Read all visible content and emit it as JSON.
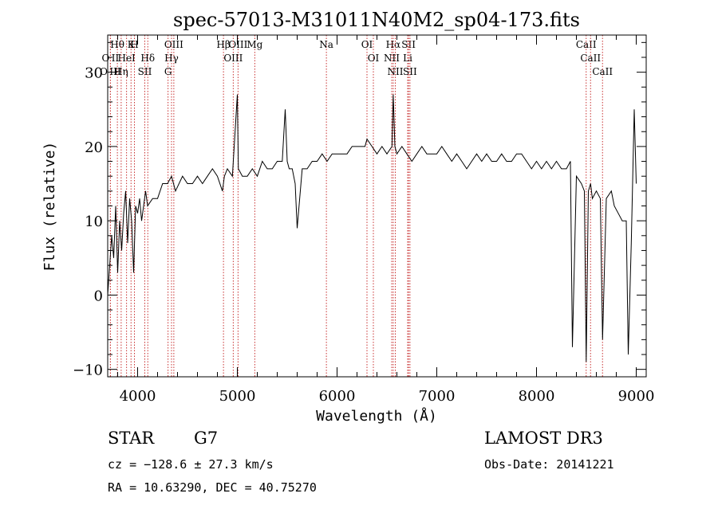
{
  "chart_data": {
    "type": "line",
    "title": "spec-57013-M31011N40M2_sp04-173.fits",
    "xlabel": "Wavelength (Å)",
    "ylabel": "Flux (relative)",
    "xlim": [
      3700,
      9100
    ],
    "ylim": [
      -11,
      35
    ],
    "xticks": [
      4000,
      5000,
      6000,
      7000,
      8000,
      9000
    ],
    "xtick_labels": [
      "4000",
      "5000",
      "6000",
      "7000",
      "8000",
      "9000"
    ],
    "yticks": [
      -10,
      0,
      10,
      20,
      30
    ],
    "ytick_labels": [
      "−10",
      "0",
      "10",
      "20",
      "30"
    ],
    "series": [
      {
        "name": "flux",
        "x": [
          3700,
          3720,
          3740,
          3760,
          3780,
          3800,
          3820,
          3840,
          3860,
          3880,
          3900,
          3920,
          3940,
          3960,
          3980,
          4000,
          4020,
          4040,
          4060,
          4080,
          4100,
          4150,
          4200,
          4250,
          4300,
          4340,
          4380,
          4450,
          4500,
          4550,
          4600,
          4650,
          4700,
          4750,
          4800,
          4850,
          4870,
          4900,
          4950,
          5000,
          5010,
          5050,
          5100,
          5150,
          5200,
          5250,
          5300,
          5350,
          5400,
          5450,
          5480,
          5500,
          5520,
          5550,
          5580,
          5600,
          5650,
          5700,
          5750,
          5800,
          5850,
          5900,
          5950,
          6000,
          6050,
          6100,
          6150,
          6200,
          6250,
          6280,
          6300,
          6350,
          6400,
          6450,
          6500,
          6550,
          6563,
          6580,
          6600,
          6650,
          6700,
          6750,
          6800,
          6850,
          6900,
          6950,
          7000,
          7050,
          7100,
          7150,
          7200,
          7250,
          7300,
          7350,
          7400,
          7450,
          7500,
          7550,
          7600,
          7650,
          7700,
          7750,
          7800,
          7850,
          7900,
          7950,
          8000,
          8050,
          8100,
          8150,
          8200,
          8250,
          8300,
          8340,
          8360,
          8400,
          8450,
          8480,
          8498,
          8520,
          8542,
          8560,
          8600,
          8640,
          8662,
          8700,
          8750,
          8780,
          8820,
          8860,
          8900,
          8920,
          8950,
          8980,
          9000
        ],
        "values": [
          0,
          4,
          8,
          5,
          12,
          3,
          10,
          6,
          11,
          14,
          7,
          13,
          10,
          3,
          12,
          11,
          13,
          10,
          12,
          14,
          12,
          13,
          13,
          15,
          15,
          16,
          14,
          16,
          15,
          15,
          16,
          15,
          16,
          17,
          16,
          14,
          16,
          17,
          16,
          27,
          17,
          16,
          16,
          17,
          16,
          18,
          17,
          17,
          18,
          18,
          25,
          18,
          17,
          17,
          15,
          9,
          17,
          17,
          18,
          18,
          19,
          18,
          19,
          19,
          19,
          19,
          20,
          20,
          20,
          20,
          21,
          20,
          19,
          20,
          19,
          20,
          27,
          20,
          19,
          20,
          19,
          18,
          19,
          20,
          19,
          19,
          19,
          20,
          19,
          18,
          19,
          18,
          17,
          18,
          19,
          18,
          19,
          18,
          18,
          19,
          18,
          18,
          19,
          19,
          18,
          17,
          18,
          17,
          18,
          17,
          18,
          17,
          17,
          18,
          -7,
          16,
          15,
          14,
          -9,
          14,
          15,
          13,
          14,
          13,
          -6,
          13,
          14,
          12,
          11,
          10,
          10,
          -8,
          7,
          25,
          15
        ]
      }
    ],
    "line_groups": [
      {
        "labels": [
          "Hθ",
          "O II",
          "O III"
        ],
        "wavelengths": [
          3797,
          3727,
          3727
        ]
      },
      {
        "labels": [
          "K",
          "HeI",
          "Hη"
        ],
        "wavelengths": [
          3934,
          3889,
          3835
        ]
      },
      {
        "labels": [
          "H",
          "Hδ",
          "SII"
        ],
        "wavelengths": [
          3968,
          4102,
          4072
        ]
      },
      {
        "labels": [
          "OIII",
          "Hγ",
          "G"
        ],
        "wavelengths": [
          4363,
          4340,
          4305
        ]
      },
      {
        "labels": [
          "Hβ"
        ],
        "wavelengths": [
          4861
        ]
      },
      {
        "labels": [
          "OIII",
          "OIII"
        ],
        "wavelengths": [
          5007,
          4959
        ]
      },
      {
        "labels": [
          "Mg"
        ],
        "wavelengths": [
          5175
        ]
      },
      {
        "labels": [
          "Na"
        ],
        "wavelengths": [
          5893
        ]
      },
      {
        "labels": [
          "OI",
          "OI"
        ],
        "wavelengths": [
          6300,
          6364
        ]
      },
      {
        "labels": [
          "Hα",
          "NII",
          "NII"
        ],
        "wavelengths": [
          6563,
          6548,
          6584
        ]
      },
      {
        "labels": [
          "SII",
          "Li",
          "SII"
        ],
        "wavelengths": [
          6717,
          6708,
          6731
        ]
      },
      {
        "labels": [
          "CaII",
          "CaII",
          "CaII"
        ],
        "wavelengths": [
          8498,
          8542,
          8662
        ]
      }
    ]
  },
  "footer": {
    "object_class": "STAR",
    "subclass": "G7",
    "survey": "LAMOST DR3",
    "cz": "cz = −128.6 ± 27.3 km/s",
    "obs_date": "Obs-Date: 20141221",
    "coords": "RA =  10.63290, DEC =  40.75270"
  }
}
